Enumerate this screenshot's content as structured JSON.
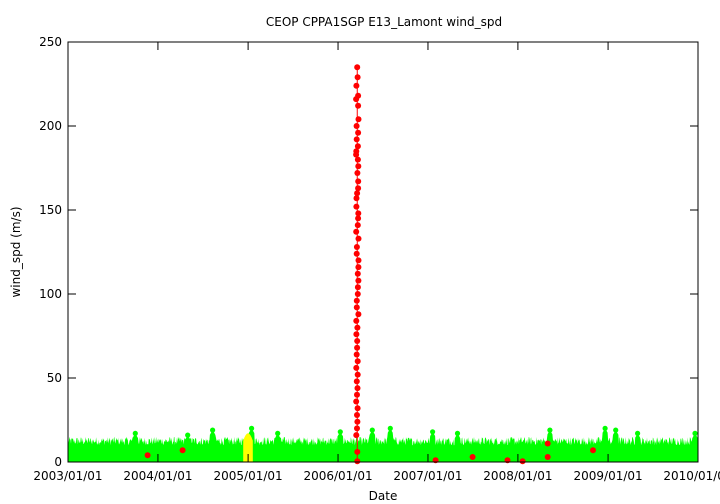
{
  "chart_data": {
    "type": "scatter",
    "title": "CEOP CPPA1SGP E13_Lamont  wind_spd",
    "xlabel": "Date",
    "ylabel": "wind_spd (m/s)",
    "x_ticks": [
      "2003/01/01",
      "2004/01/01",
      "2005/01/01",
      "2006/01/01",
      "2007/01/01",
      "2008/01/01",
      "2009/01/01",
      "2010/01/01"
    ],
    "x_range": [
      "2003/01/01",
      "2010/01/01"
    ],
    "ylim": [
      0,
      250
    ],
    "y_ticks": [
      0,
      50,
      100,
      150,
      200,
      250
    ],
    "grid": false,
    "colors": {
      "good": "#00ff00",
      "suspect": "#ffff00",
      "bad": "#ff0000",
      "axis": "#000000"
    },
    "series": [
      {
        "color": "#00ff00",
        "x_start": "2003/01/01",
        "x_end": "2010/01/01",
        "band_min": 0,
        "band_typical_max": 14,
        "peaks": [
          [
            "2003/10/01",
            17
          ],
          [
            "2004/05/01",
            16
          ],
          [
            "2004/08/10",
            19
          ],
          [
            "2005/01/15",
            20
          ],
          [
            "2005/05/01",
            17
          ],
          [
            "2006/01/10",
            18
          ],
          [
            "2006/05/20",
            19
          ],
          [
            "2006/08/01",
            20
          ],
          [
            "2007/01/20",
            18
          ],
          [
            "2007/05/01",
            17
          ],
          [
            "2008/05/10",
            19
          ],
          [
            "2008/12/20",
            20
          ],
          [
            "2009/02/01",
            19
          ],
          [
            "2009/05/01",
            17
          ],
          [
            "2009/12/20",
            17
          ]
        ]
      },
      {
        "color": "#ffff00",
        "x_start": "2004/12/12",
        "x_end": "2005/01/20",
        "band_min": 0,
        "peak": 18
      },
      {
        "color": "#ff0000",
        "points": [
          [
            "2003/11/20",
            4
          ],
          [
            "2004/04/10",
            7
          ],
          [
            "2007/02/01",
            1
          ],
          [
            "2007/07/01",
            3
          ],
          [
            "2007/11/20",
            1
          ],
          [
            "2008/01/20",
            0.5
          ],
          [
            "2008/05/01",
            11
          ],
          [
            "2008/05/01",
            3
          ],
          [
            "2008/11/01",
            7
          ],
          [
            "2006/03/20",
            0.5
          ],
          [
            "2006/03/20",
            6
          ]
        ],
        "spike": {
          "date": "2006/03/20",
          "values": [
            235,
            229,
            224,
            218,
            216,
            212,
            204,
            200,
            196,
            192,
            188,
            185,
            183,
            180,
            176,
            172,
            167,
            163,
            160,
            157,
            152,
            148,
            145,
            141,
            137,
            133,
            128,
            124,
            120,
            116,
            112,
            108,
            104,
            100,
            96,
            92,
            88,
            84,
            80,
            76,
            72,
            68,
            64,
            60,
            56,
            52,
            48,
            44,
            40,
            36,
            32,
            28,
            24,
            20,
            16
          ]
        }
      }
    ]
  }
}
